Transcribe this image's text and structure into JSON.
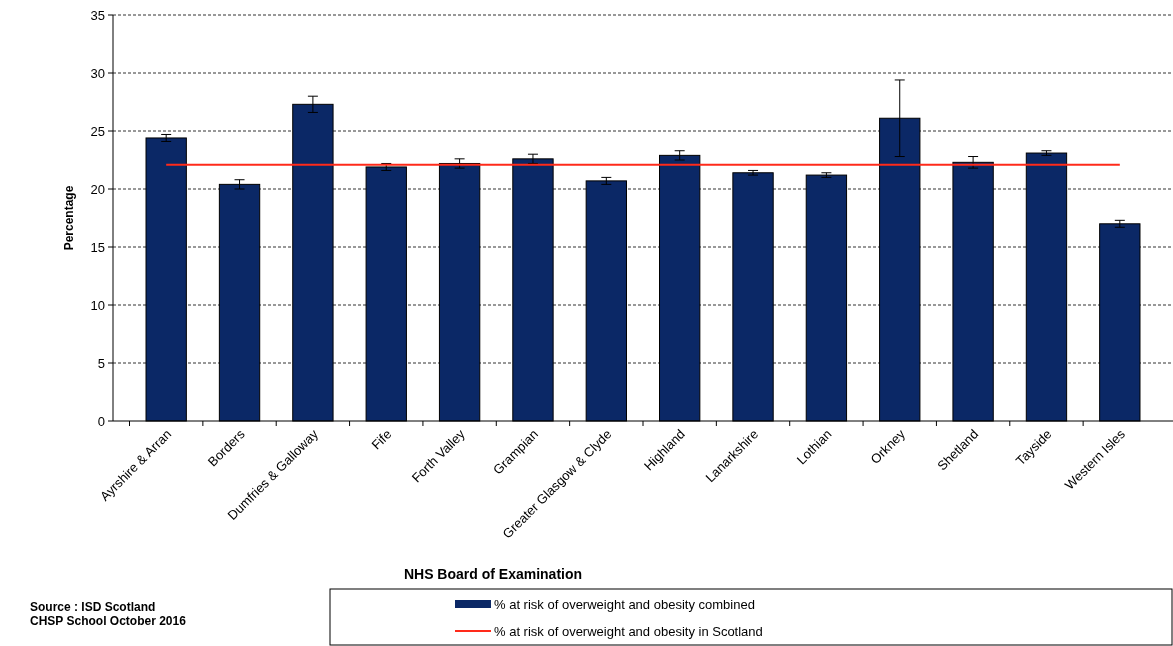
{
  "chart_data": {
    "type": "bar",
    "categories": [
      "Ayrshire & Arran",
      "Borders",
      "Dumfries & Galloway",
      "Fife",
      "Forth Valley",
      "Grampian",
      "Greater Glasgow & Clyde",
      "Highland",
      "Lanarkshire",
      "Lothian",
      "Orkney",
      "Shetland",
      "Tayside",
      "Western Isles"
    ],
    "series": [
      {
        "name": "% at risk of overweight and obesity combined",
        "color": "#0b2866",
        "values": [
          24.4,
          20.4,
          27.3,
          21.9,
          22.2,
          22.6,
          20.7,
          22.9,
          21.4,
          21.2,
          26.1,
          22.3,
          23.1,
          17.0
        ],
        "errors": [
          0.3,
          0.4,
          0.7,
          0.3,
          0.4,
          0.4,
          0.3,
          0.4,
          0.2,
          0.2,
          [
            22.8,
            29.4
          ],
          0.5,
          0.2,
          0.3
        ]
      }
    ],
    "ref_lines": [
      {
        "axis": "y",
        "value": 22.1,
        "label": "% at risk of overweight and obesity in Scotland",
        "color": "#ff2a1a"
      }
    ],
    "xlabel": "NHS Board of Examination",
    "ylabel": "Percentage",
    "ylim": [
      0,
      35
    ],
    "yticks": [
      0,
      5,
      10,
      15,
      20,
      25,
      30,
      35
    ],
    "grid": "y",
    "legend": "bottom",
    "annotations": [
      "Source : ISD Scotland",
      "CHSP School October 2016"
    ]
  }
}
